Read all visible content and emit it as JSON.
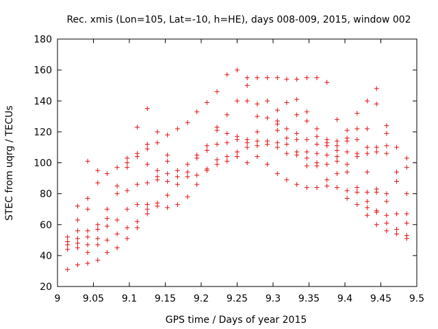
{
  "chart_data": {
    "type": "scatter",
    "title": "Rec. xmis (Lon=105, Lat=-10, h=HE), days 008-009, 2015, window 002",
    "xlabel": "GPS time / Days of year 2015",
    "ylabel": "STEC from uqrg / TECUs",
    "xlim": [
      9.0,
      9.5
    ],
    "ylim": [
      20,
      180
    ],
    "xticks": [
      "9",
      "9.05",
      "9.1",
      "9.15",
      "9.2",
      "9.25",
      "9.3",
      "9.35",
      "9.4",
      "9.45",
      "9.5"
    ],
    "yticks": [
      "20",
      "40",
      "60",
      "80",
      "100",
      "120",
      "140",
      "160",
      "180"
    ],
    "grid": false,
    "legend": "none",
    "marker_color": "#e01010",
    "marker": "plus",
    "series": [
      {
        "points": [
          [
            9.014,
            31
          ],
          [
            9.014,
            44
          ],
          [
            9.014,
            47
          ],
          [
            9.014,
            49
          ],
          [
            9.014,
            52
          ],
          [
            9.028,
            34
          ],
          [
            9.028,
            45
          ],
          [
            9.028,
            48
          ],
          [
            9.028,
            51
          ],
          [
            9.028,
            56
          ],
          [
            9.028,
            63
          ],
          [
            9.028,
            72
          ],
          [
            9.042,
            35
          ],
          [
            9.042,
            42
          ],
          [
            9.042,
            47
          ],
          [
            9.042,
            52
          ],
          [
            9.042,
            56
          ],
          [
            9.042,
            70
          ],
          [
            9.042,
            77
          ],
          [
            9.042,
            101
          ],
          [
            9.056,
            37
          ],
          [
            9.056,
            47
          ],
          [
            9.056,
            51
          ],
          [
            9.056,
            57
          ],
          [
            9.056,
            60
          ],
          [
            9.056,
            87
          ],
          [
            9.056,
            95
          ],
          [
            9.069,
            42
          ],
          [
            9.069,
            50
          ],
          [
            9.069,
            59
          ],
          [
            9.069,
            64
          ],
          [
            9.069,
            70
          ],
          [
            9.069,
            93
          ],
          [
            9.083,
            45
          ],
          [
            9.083,
            54
          ],
          [
            9.083,
            63
          ],
          [
            9.083,
            80
          ],
          [
            9.083,
            85
          ],
          [
            9.083,
            97
          ],
          [
            9.097,
            51
          ],
          [
            9.097,
            58
          ],
          [
            9.097,
            70
          ],
          [
            9.097,
            82
          ],
          [
            9.097,
            97
          ],
          [
            9.097,
            100
          ],
          [
            9.097,
            103
          ],
          [
            9.111,
            58
          ],
          [
            9.111,
            62
          ],
          [
            9.111,
            73
          ],
          [
            9.111,
            86
          ],
          [
            9.111,
            104
          ],
          [
            9.111,
            106
          ],
          [
            9.111,
            123
          ],
          [
            9.125,
            67
          ],
          [
            9.125,
            70
          ],
          [
            9.125,
            73
          ],
          [
            9.125,
            87
          ],
          [
            9.125,
            99
          ],
          [
            9.125,
            109
          ],
          [
            9.125,
            112
          ],
          [
            9.125,
            135
          ],
          [
            9.139,
            72
          ],
          [
            9.139,
            74
          ],
          [
            9.139,
            89
          ],
          [
            9.139,
            91
          ],
          [
            9.139,
            95
          ],
          [
            9.139,
            113
          ],
          [
            9.139,
            120
          ],
          [
            9.153,
            71
          ],
          [
            9.153,
            79
          ],
          [
            9.153,
            88
          ],
          [
            9.153,
            93
          ],
          [
            9.153,
            101
          ],
          [
            9.153,
            105
          ],
          [
            9.153,
            118
          ],
          [
            9.167,
            73
          ],
          [
            9.167,
            86
          ],
          [
            9.167,
            91
          ],
          [
            9.167,
            95
          ],
          [
            9.167,
            122
          ],
          [
            9.181,
            78
          ],
          [
            9.181,
            91
          ],
          [
            9.181,
            94
          ],
          [
            9.181,
            99
          ],
          [
            9.181,
            126
          ],
          [
            9.194,
            86
          ],
          [
            9.194,
            92
          ],
          [
            9.194,
            103
          ],
          [
            9.194,
            105
          ],
          [
            9.194,
            133
          ],
          [
            9.208,
            95
          ],
          [
            9.208,
            96
          ],
          [
            9.208,
            108
          ],
          [
            9.208,
            111
          ],
          [
            9.208,
            139
          ],
          [
            9.222,
            99
          ],
          [
            9.222,
            102
          ],
          [
            9.222,
            112
          ],
          [
            9.222,
            121
          ],
          [
            9.222,
            123
          ],
          [
            9.222,
            146
          ],
          [
            9.236,
            101
          ],
          [
            9.236,
            104
          ],
          [
            9.236,
            113
          ],
          [
            9.236,
            119
          ],
          [
            9.236,
            131
          ],
          [
            9.236,
            157
          ],
          [
            9.25,
            104
          ],
          [
            9.25,
            107
          ],
          [
            9.25,
            115
          ],
          [
            9.25,
            117
          ],
          [
            9.25,
            140
          ],
          [
            9.25,
            160
          ],
          [
            9.264,
            100
          ],
          [
            9.264,
            110
          ],
          [
            9.264,
            113
          ],
          [
            9.264,
            115
          ],
          [
            9.264,
            140
          ],
          [
            9.264,
            150
          ],
          [
            9.264,
            155
          ],
          [
            9.278,
            104
          ],
          [
            9.278,
            111
          ],
          [
            9.278,
            114
          ],
          [
            9.278,
            120
          ],
          [
            9.278,
            130
          ],
          [
            9.278,
            138
          ],
          [
            9.278,
            155
          ],
          [
            9.292,
            99
          ],
          [
            9.292,
            112
          ],
          [
            9.292,
            114
          ],
          [
            9.292,
            129
          ],
          [
            9.292,
            140
          ],
          [
            9.292,
            155
          ],
          [
            9.306,
            93
          ],
          [
            9.306,
            110
          ],
          [
            9.306,
            113
          ],
          [
            9.306,
            121
          ],
          [
            9.306,
            125
          ],
          [
            9.306,
            127
          ],
          [
            9.306,
            134
          ],
          [
            9.306,
            155
          ],
          [
            9.319,
            89
          ],
          [
            9.319,
            106
          ],
          [
            9.319,
            112
          ],
          [
            9.319,
            116
          ],
          [
            9.319,
            122
          ],
          [
            9.319,
            139
          ],
          [
            9.319,
            154
          ],
          [
            9.333,
            86
          ],
          [
            9.333,
            105
          ],
          [
            9.333,
            107
          ],
          [
            9.333,
            115
          ],
          [
            9.333,
            119
          ],
          [
            9.333,
            131
          ],
          [
            9.333,
            141
          ],
          [
            9.333,
            154
          ],
          [
            9.347,
            84
          ],
          [
            9.347,
            98
          ],
          [
            9.347,
            103
          ],
          [
            9.347,
            107
          ],
          [
            9.347,
            115
          ],
          [
            9.347,
            127
          ],
          [
            9.347,
            133
          ],
          [
            9.347,
            155
          ],
          [
            9.361,
            84
          ],
          [
            9.361,
            98
          ],
          [
            9.361,
            100
          ],
          [
            9.361,
            106
          ],
          [
            9.361,
            112
          ],
          [
            9.361,
            117
          ],
          [
            9.361,
            122
          ],
          [
            9.361,
            155
          ],
          [
            9.375,
            85
          ],
          [
            9.375,
            89
          ],
          [
            9.375,
            99
          ],
          [
            9.375,
            105
          ],
          [
            9.375,
            111
          ],
          [
            9.375,
            113
          ],
          [
            9.375,
            115
          ],
          [
            9.375,
            152
          ],
          [
            9.389,
            84
          ],
          [
            9.389,
            93
          ],
          [
            9.389,
            101
          ],
          [
            9.389,
            104
          ],
          [
            9.389,
            108
          ],
          [
            9.389,
            111
          ],
          [
            9.389,
            114
          ],
          [
            9.389,
            128
          ],
          [
            9.403,
            77
          ],
          [
            9.403,
            82
          ],
          [
            9.403,
            94
          ],
          [
            9.403,
            99
          ],
          [
            9.403,
            107
          ],
          [
            9.403,
            114
          ],
          [
            9.403,
            116
          ],
          [
            9.403,
            121
          ],
          [
            9.417,
            73
          ],
          [
            9.417,
            81
          ],
          [
            9.417,
            84
          ],
          [
            9.417,
            104
          ],
          [
            9.417,
            106
          ],
          [
            9.417,
            115
          ],
          [
            9.417,
            122
          ],
          [
            9.417,
            132
          ],
          [
            9.431,
            66
          ],
          [
            9.431,
            71
          ],
          [
            9.431,
            75
          ],
          [
            9.431,
            81
          ],
          [
            9.431,
            94
          ],
          [
            9.431,
            106
          ],
          [
            9.431,
            110
          ],
          [
            9.431,
            122
          ],
          [
            9.431,
            140
          ],
          [
            9.444,
            60
          ],
          [
            9.444,
            68
          ],
          [
            9.444,
            69
          ],
          [
            9.444,
            81
          ],
          [
            9.444,
            83
          ],
          [
            9.444,
            107
          ],
          [
            9.444,
            110
          ],
          [
            9.444,
            138
          ],
          [
            9.444,
            148
          ],
          [
            9.458,
            56
          ],
          [
            9.458,
            61
          ],
          [
            9.458,
            66
          ],
          [
            9.458,
            75
          ],
          [
            9.458,
            80
          ],
          [
            9.458,
            106
          ],
          [
            9.458,
            111
          ],
          [
            9.458,
            119
          ],
          [
            9.458,
            124
          ],
          [
            9.472,
            54
          ],
          [
            9.472,
            57
          ],
          [
            9.472,
            67
          ],
          [
            9.472,
            88
          ],
          [
            9.472,
            94
          ],
          [
            9.472,
            110
          ],
          [
            9.486,
            51
          ],
          [
            9.486,
            53
          ],
          [
            9.486,
            61
          ],
          [
            9.486,
            67
          ],
          [
            9.486,
            80
          ],
          [
            9.486,
            97
          ],
          [
            9.486,
            103
          ]
        ]
      }
    ]
  }
}
